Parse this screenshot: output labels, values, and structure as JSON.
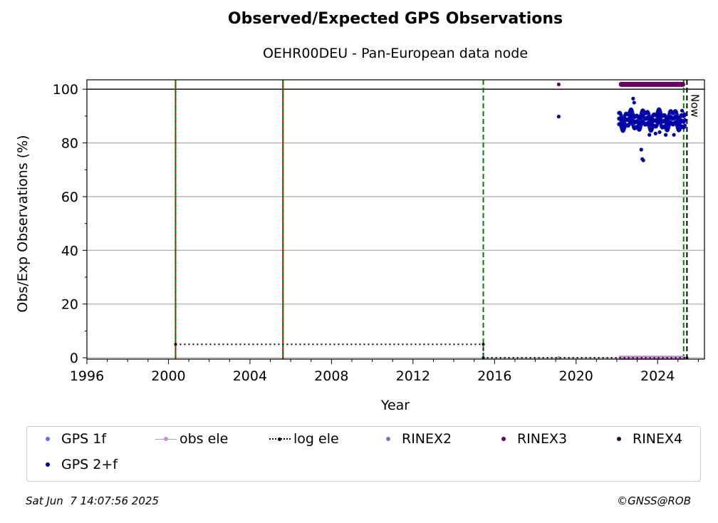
{
  "chart_data": {
    "type": "scatter",
    "title": "Observed/Expected GPS Observations",
    "subtitle": "OEHR00DEU - Pan-European data node",
    "xlabel": "Year",
    "ylabel": "Obs/Exp Observations (%)",
    "xlim": [
      1996,
      2026.3
    ],
    "ylim": [
      -0.5,
      103.5
    ],
    "x_ticks": [
      "1996",
      "2000",
      "2004",
      "2008",
      "2012",
      "2016",
      "2020",
      "2024"
    ],
    "y_ticks": [
      "0",
      "20",
      "40",
      "60",
      "80",
      "100"
    ],
    "grid": "horizontal",
    "reference_line": 100,
    "now_label": "Now",
    "now_x": 2025.44,
    "vertical_lines": [
      {
        "x": 2000.35,
        "style": "green-red-dashed"
      },
      {
        "x": 2005.62,
        "style": "green-red-dashed"
      },
      {
        "x": 2015.45,
        "style": "green-dashed"
      },
      {
        "x": 2025.28,
        "style": "green-dashed"
      },
      {
        "x": 2025.44,
        "style": "black-dashed"
      }
    ],
    "series": [
      {
        "name": "GPS 1f",
        "color": "#6b6bf7",
        "points": []
      },
      {
        "name": "obs ele",
        "color": "#c68fcf",
        "segments": [
          [
            2019.15,
            2019.15,
            0
          ],
          [
            2022.1,
            2025.35,
            0
          ]
        ]
      },
      {
        "name": "log ele",
        "color": "#000000",
        "steps": [
          [
            2000.35,
            5
          ],
          [
            2015.45,
            5
          ],
          [
            2015.45,
            0
          ],
          [
            2025.44,
            0
          ]
        ]
      },
      {
        "name": "RINEX2",
        "color": "#8170c0",
        "points": []
      },
      {
        "name": "RINEX3",
        "color": "#6a0060",
        "points": [
          [
            2019.15,
            101.8
          ]
        ],
        "band": {
          "from": 2022.1,
          "to": 2025.35,
          "y": 101.8
        }
      },
      {
        "name": "RINEX4",
        "color": "#2a0a2a",
        "points": []
      },
      {
        "name": "GPS 2+f",
        "color": "#0000a8",
        "points": [
          [
            2019.15,
            89.8
          ],
          [
            2022.8,
            96.5
          ],
          [
            2022.85,
            95.0
          ],
          [
            2023.2,
            77.5
          ],
          [
            2023.25,
            74.0
          ],
          [
            2023.3,
            73.5
          ],
          [
            2023.6,
            83.0
          ],
          [
            2023.9,
            83.5
          ],
          [
            2024.1,
            84.0
          ],
          [
            2024.4,
            83.0
          ],
          [
            2024.8,
            83.0
          ],
          [
            2025.1,
            87.5
          ],
          [
            2025.2,
            92.0
          ],
          [
            2025.3,
            86.0
          ]
        ],
        "band": {
          "from": 2022.1,
          "to": 2025.35,
          "center": 88.5,
          "spread": 3.5
        }
      }
    ]
  },
  "legend": {
    "items": [
      "GPS 1f",
      "obs ele",
      "log ele",
      "RINEX2",
      "RINEX3",
      "RINEX4",
      "GPS 2+f"
    ]
  },
  "footer": {
    "timestamp": "Sat Jun  7 14:07:56 2025",
    "credit": "©GNSS@ROB"
  }
}
